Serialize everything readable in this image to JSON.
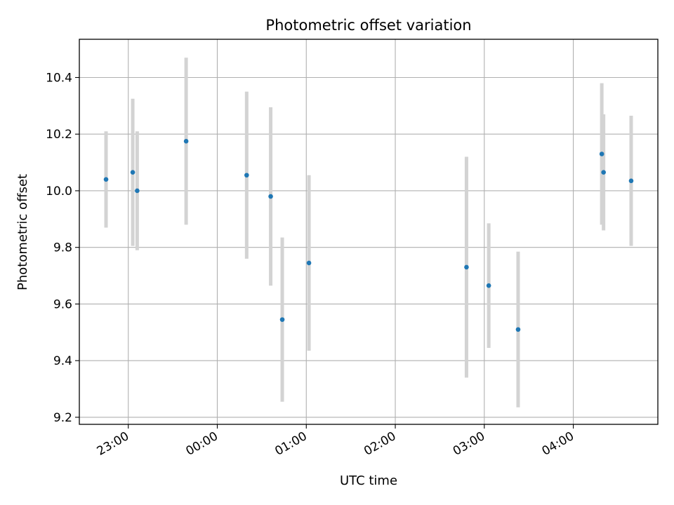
{
  "chart_data": {
    "type": "scatter",
    "title": "Photometric offset variation",
    "xlabel": "UTC time",
    "ylabel": "Photometric offset",
    "x_unit": "hours relative to 00:00 UTC",
    "xlim": [
      -1.55,
      4.95
    ],
    "ylim": [
      9.175,
      10.535
    ],
    "grid": true,
    "marker_color": "#1f77b4",
    "errorbar_color": "#d3d3d3",
    "x_ticks": [
      {
        "value": -1,
        "label": "23:00"
      },
      {
        "value": 0,
        "label": "00:00"
      },
      {
        "value": 1,
        "label": "01:00"
      },
      {
        "value": 2,
        "label": "02:00"
      },
      {
        "value": 3,
        "label": "03:00"
      },
      {
        "value": 4,
        "label": "04:00"
      }
    ],
    "y_ticks": [
      {
        "value": 9.2,
        "label": "9.2"
      },
      {
        "value": 9.4,
        "label": "9.4"
      },
      {
        "value": 9.6,
        "label": "9.6"
      },
      {
        "value": 9.8,
        "label": "9.8"
      },
      {
        "value": 10.0,
        "label": "10.0"
      },
      {
        "value": 10.2,
        "label": "10.2"
      },
      {
        "value": 10.4,
        "label": "10.4"
      }
    ],
    "points": [
      {
        "x": -1.25,
        "y": 10.04,
        "yerr": 0.17
      },
      {
        "x": -0.95,
        "y": 10.065,
        "yerr": 0.26
      },
      {
        "x": -0.9,
        "y": 10.0,
        "yerr": 0.21
      },
      {
        "x": -0.35,
        "y": 10.175,
        "yerr": 0.295
      },
      {
        "x": 0.33,
        "y": 10.055,
        "yerr": 0.295
      },
      {
        "x": 0.6,
        "y": 9.98,
        "yerr": 0.315
      },
      {
        "x": 0.73,
        "y": 9.545,
        "yerr": 0.29
      },
      {
        "x": 1.03,
        "y": 9.745,
        "yerr": 0.31
      },
      {
        "x": 2.8,
        "y": 9.73,
        "yerr": 0.39
      },
      {
        "x": 3.05,
        "y": 9.665,
        "yerr": 0.22
      },
      {
        "x": 3.38,
        "y": 9.51,
        "yerr": 0.275
      },
      {
        "x": 4.32,
        "y": 10.13,
        "yerr": 0.25
      },
      {
        "x": 4.34,
        "y": 10.065,
        "yerr": 0.205
      },
      {
        "x": 4.65,
        "y": 10.035,
        "yerr": 0.23
      }
    ]
  }
}
